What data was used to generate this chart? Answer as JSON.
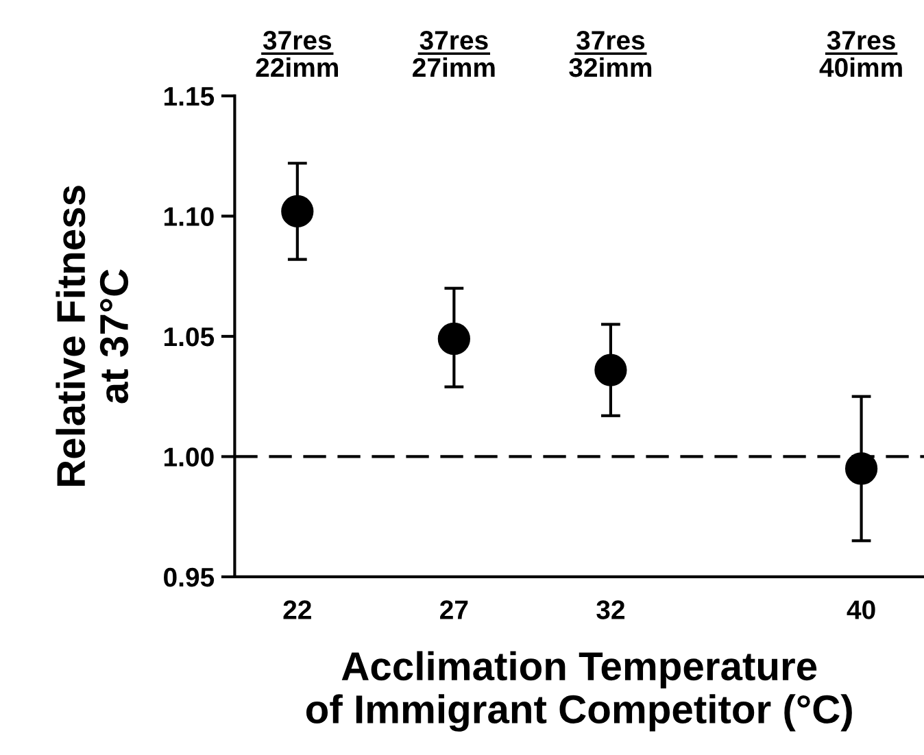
{
  "chart_data": {
    "type": "scatter",
    "xlabel": "Acclimation Temperature\nof Immigrant Competitor (°C)",
    "ylabel": "Relative Fitness\nat 37°C",
    "x": [
      22,
      27,
      32,
      40
    ],
    "values": [
      1.102,
      1.049,
      1.036,
      0.995
    ],
    "errors": [
      [
        1.082,
        1.122
      ],
      [
        1.029,
        1.07
      ],
      [
        1.017,
        1.055
      ],
      [
        0.965,
        1.025
      ]
    ],
    "color": "#000000",
    "marker": "circle",
    "xlim": [
      20,
      42
    ],
    "xticks": [
      22,
      27,
      32,
      40
    ],
    "ylim": [
      0.95,
      1.15
    ],
    "yticks": [
      {
        "value": 0.95,
        "label": "0.95"
      },
      {
        "value": 1.0,
        "label": "1.00"
      },
      {
        "value": 1.05,
        "label": "1.05"
      },
      {
        "value": 1.1,
        "label": "1.10"
      },
      {
        "value": 1.15,
        "label": "1.15"
      }
    ],
    "ref_lines": [
      {
        "axis": "y",
        "value": 1.0,
        "line_style": "dashed",
        "color": "#000000"
      }
    ],
    "annotations": [
      "37res\n22imm",
      "37res\n27imm",
      "37res\n32imm",
      "37res\n40imm"
    ],
    "grid": false,
    "legend": false
  }
}
